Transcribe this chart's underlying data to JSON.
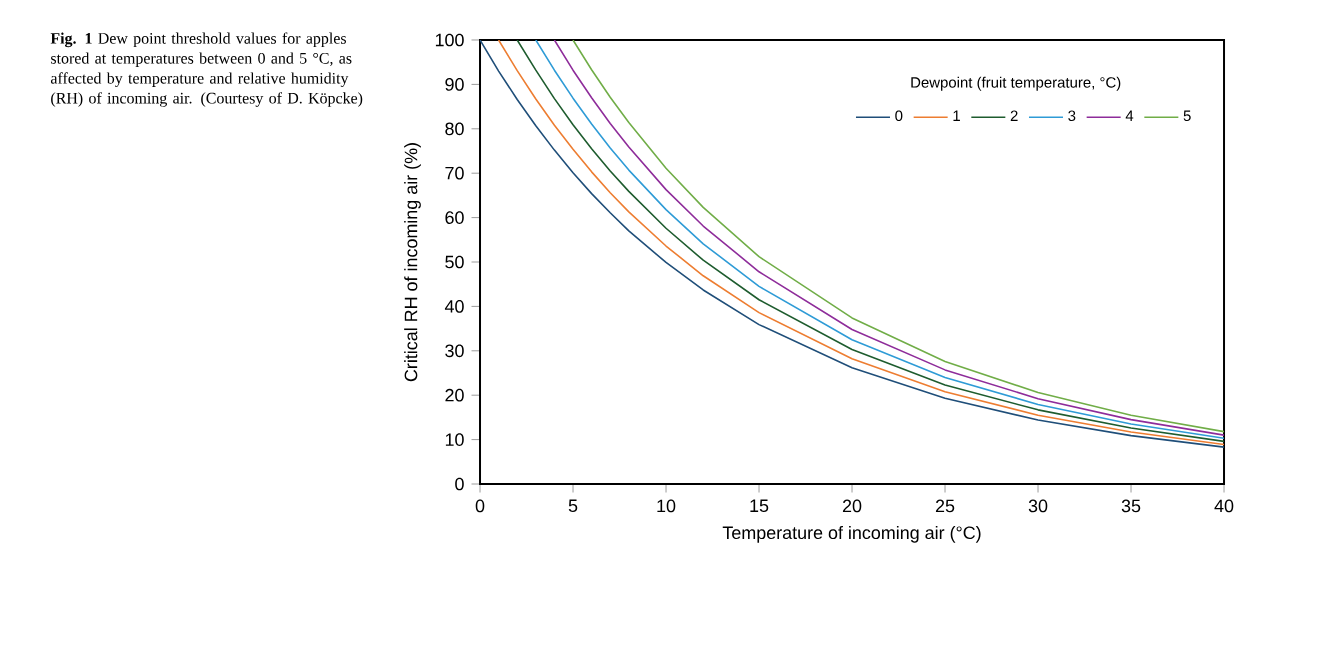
{
  "chart_data": {
    "type": "line",
    "title": "**Fig. 1** Dew point threshold values for apples stored at temperatures between 0 and 5 °C, as affected by temperature and relative humidity (RH) of incoming air. (Courtesy of D. Köpcke)",
    "xlabel": "Temperature of incoming air (°C)",
    "ylabel": "Critical RH of incoming air (%)",
    "legend_title": "Dewpoint (fruit temperature, °C)",
    "legend": "top right",
    "grid": false,
    "marker": "none",
    "line_style": "solid",
    "x": [
      0,
      1,
      2,
      3,
      4,
      5,
      6,
      7,
      8,
      10,
      12,
      15,
      20,
      25,
      30,
      35,
      40
    ],
    "xlim": [
      0,
      40
    ],
    "xticks": [
      0,
      5,
      10,
      15,
      20,
      25,
      30,
      35,
      40
    ],
    "ylim": [
      0,
      100
    ],
    "yticks": [
      0,
      10,
      20,
      30,
      40,
      50,
      60,
      70,
      80,
      90,
      100
    ],
    "series": [
      {
        "name": "0",
        "color": "#1f4e79",
        "values": [
          100,
          93.0,
          86.6,
          80.7,
          75.2,
          70.1,
          65.4,
          61.1,
          57.0,
          49.9,
          43.7,
          35.9,
          26.2,
          19.3,
          14.4,
          10.9,
          8.3
        ]
      },
      {
        "name": "1",
        "color": "#ed7d31",
        "values": [
          null,
          100,
          93.1,
          86.7,
          80.8,
          75.4,
          70.3,
          65.6,
          61.3,
          53.6,
          46.9,
          38.6,
          28.2,
          20.8,
          15.5,
          11.7,
          8.9
        ]
      },
      {
        "name": "2",
        "color": "#1e5c2e",
        "values": [
          null,
          null,
          100,
          93.2,
          86.8,
          80.9,
          75.5,
          70.5,
          65.9,
          57.6,
          50.4,
          41.5,
          30.3,
          22.3,
          16.7,
          12.6,
          9.6
        ]
      },
      {
        "name": "3",
        "color": "#2e9bd6",
        "values": [
          null,
          null,
          null,
          100,
          93.2,
          86.9,
          81.1,
          75.7,
          70.7,
          61.8,
          54.1,
          44.5,
          32.5,
          24.0,
          17.9,
          13.5,
          10.3
        ]
      },
      {
        "name": "4",
        "color": "#8e2c9a",
        "values": [
          null,
          null,
          null,
          null,
          100,
          93.2,
          87.0,
          81.2,
          75.9,
          66.3,
          58.1,
          47.8,
          34.8,
          25.7,
          19.2,
          14.5,
          11.0
        ]
      },
      {
        "name": "5",
        "color": "#70ad47",
        "values": [
          null,
          null,
          null,
          null,
          null,
          100,
          93.3,
          87.1,
          81.4,
          71.1,
          62.3,
          51.2,
          37.4,
          27.6,
          20.6,
          15.5,
          11.8
        ]
      }
    ]
  }
}
